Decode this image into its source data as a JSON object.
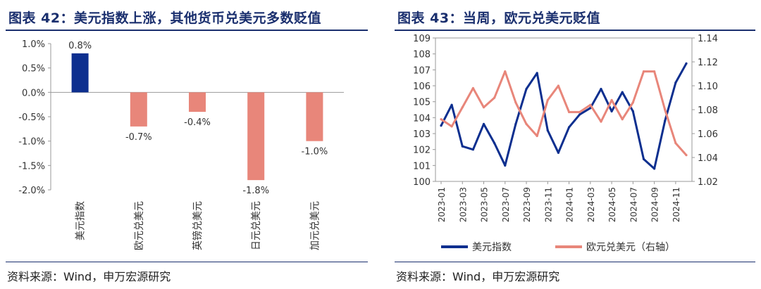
{
  "left": {
    "title": "图表 42：美元指数上涨，其他货币兑美元多数贬值",
    "source": "资料来源：Wind，申万宏源研究"
  },
  "right": {
    "title": "图表 43：当周，欧元兑美元贬值",
    "source": "资料来源：Wind，申万宏源研究"
  },
  "colors": {
    "navy": "#0d2f8f",
    "salmon": "#e8867a",
    "title": "#1a2f6e"
  },
  "chart_data": [
    {
      "type": "bar",
      "title": "图表 42：美元指数上涨，其他货币兑美元多数贬值",
      "categories": [
        "美元指数",
        "欧元兑美元",
        "英镑兑美元",
        "日元兑美元",
        "加元兑美元"
      ],
      "values": [
        0.8,
        -0.7,
        -0.4,
        -1.8,
        -1.0
      ],
      "data_labels": [
        "0.8%",
        "-0.7%",
        "-0.4%",
        "-1.8%",
        "-1.0%"
      ],
      "bar_colors": [
        "#0d2f8f",
        "#e8867a",
        "#e8867a",
        "#e8867a",
        "#e8867a"
      ],
      "ylim": [
        -2.0,
        1.0
      ],
      "yticks": [
        "1.0%",
        "0.5%",
        "0.0%",
        "-0.5%",
        "-1.0%",
        "-1.5%",
        "-2.0%"
      ],
      "ytick_values": [
        1.0,
        0.5,
        0.0,
        -0.5,
        -1.0,
        -1.5,
        -2.0
      ],
      "grid": false
    },
    {
      "type": "line",
      "title": "图表 43：当周，欧元兑美元贬值",
      "x": [
        "2023-01",
        "2023-02",
        "2023-03",
        "2023-04",
        "2023-05",
        "2023-06",
        "2023-07",
        "2023-08",
        "2023-09",
        "2023-10",
        "2023-11",
        "2023-12",
        "2024-01",
        "2024-02",
        "2024-03",
        "2024-04",
        "2024-05",
        "2024-06",
        "2024-07",
        "2024-08",
        "2024-09",
        "2024-10",
        "2024-11",
        "2024-12"
      ],
      "xticks": [
        "2023-01",
        "2023-03",
        "2023-05",
        "2023-07",
        "2023-09",
        "2023-11",
        "2024-01",
        "2024-03",
        "2024-05",
        "2024-07",
        "2024-09",
        "2024-11"
      ],
      "series": [
        {
          "name": "美元指数",
          "axis": "left",
          "color": "#0d2f8f",
          "values": [
            103.5,
            104.8,
            102.2,
            102.0,
            103.6,
            102.4,
            101.0,
            103.6,
            105.8,
            106.8,
            103.2,
            101.8,
            103.4,
            104.2,
            104.6,
            105.8,
            104.4,
            105.6,
            104.4,
            101.4,
            100.8,
            103.8,
            106.2,
            107.4
          ]
        },
        {
          "name": "欧元兑美元（右轴）",
          "axis": "right",
          "color": "#e8867a",
          "values": [
            1.072,
            1.066,
            1.082,
            1.098,
            1.082,
            1.09,
            1.112,
            1.086,
            1.068,
            1.058,
            1.088,
            1.1,
            1.078,
            1.078,
            1.084,
            1.07,
            1.088,
            1.072,
            1.086,
            1.112,
            1.112,
            1.08,
            1.052,
            1.042
          ]
        }
      ],
      "ylim_left": [
        100,
        109
      ],
      "yticks_left": [
        "100",
        "101",
        "102",
        "103",
        "104",
        "105",
        "106",
        "107",
        "108",
        "109"
      ],
      "ylim_right": [
        1.02,
        1.14
      ],
      "yticks_right": [
        "1.02",
        "1.04",
        "1.06",
        "1.08",
        "1.10",
        "1.12",
        "1.14"
      ],
      "legend": [
        "美元指数",
        "欧元兑美元（右轴）"
      ],
      "legend_position": "bottom",
      "grid": false
    }
  ]
}
